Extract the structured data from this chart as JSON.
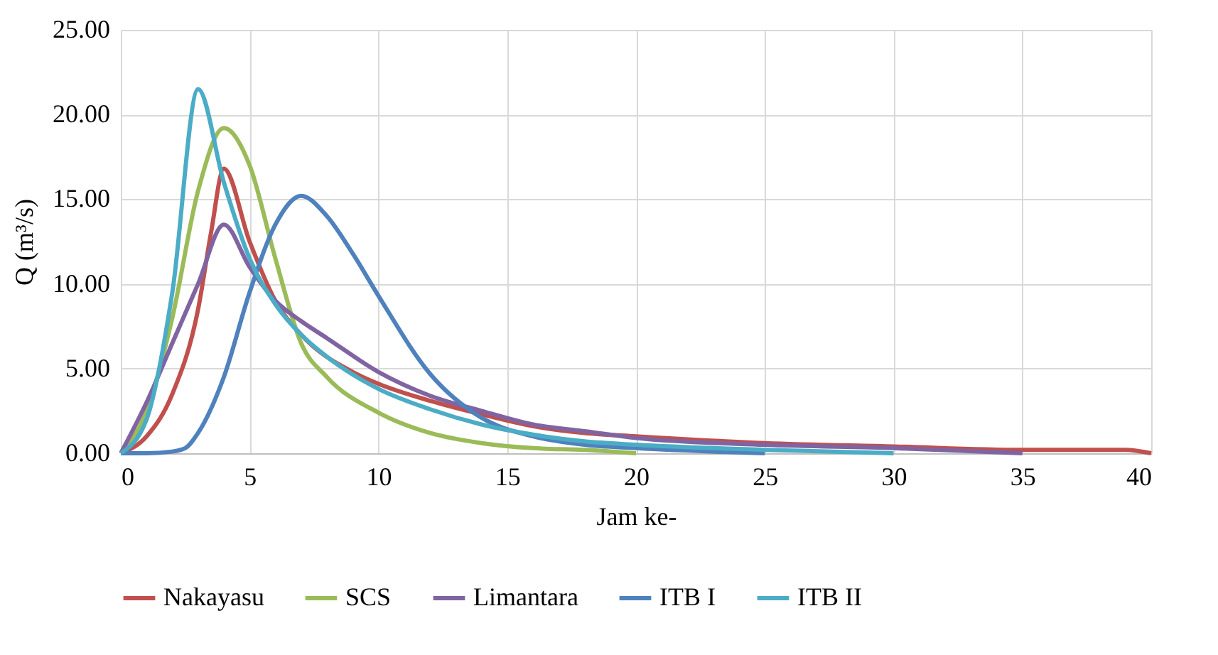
{
  "chart_data": {
    "type": "line",
    "xlabel": "Jam ke-",
    "ylabel": "Q (m³/s)",
    "xlim": [
      0,
      40
    ],
    "xticks": [
      0,
      5,
      10,
      15,
      20,
      25,
      30,
      35,
      40
    ],
    "ylim": [
      0,
      25
    ],
    "yticks": [
      {
        "value": 0,
        "label": "0.00"
      },
      {
        "value": 5,
        "label": "5.00"
      },
      {
        "value": 10,
        "label": "10.00"
      },
      {
        "value": 15,
        "label": "15.00"
      },
      {
        "value": 20,
        "label": "20.00"
      },
      {
        "value": 25,
        "label": "25.00"
      }
    ],
    "grid": true,
    "legend": "bottom",
    "line_style": "solid",
    "marker": "none",
    "series": [
      {
        "name": "Nakayasu",
        "color": "#c0504d",
        "x": [
          0,
          1,
          2,
          3,
          3.5,
          4,
          5,
          6,
          7,
          9,
          10,
          12,
          14,
          16,
          18,
          20,
          25,
          30,
          35,
          39,
          40
        ],
        "values": [
          0,
          1.0,
          3.5,
          8.5,
          13,
          16.8,
          12.5,
          9.0,
          7.0,
          4.8,
          4.1,
          3.1,
          2.3,
          1.6,
          1.2,
          1.0,
          0.6,
          0.4,
          0.2,
          0.2,
          0
        ]
      },
      {
        "name": "SCS",
        "color": "#9bbb59",
        "x": [
          0,
          1,
          2,
          3,
          4,
          5,
          6,
          7,
          8,
          10,
          12,
          14,
          16,
          18,
          20
        ],
        "values": [
          0,
          2.5,
          8.0,
          15.5,
          19.2,
          17.0,
          11.5,
          6.5,
          4.5,
          2.4,
          1.2,
          0.6,
          0.3,
          0.2,
          0
        ]
      },
      {
        "name": "Limantara",
        "color": "#8064a2",
        "x": [
          0,
          1,
          2,
          3,
          4,
          5,
          6,
          7,
          8,
          10,
          12,
          14,
          16,
          18,
          20,
          25,
          30,
          35
        ],
        "values": [
          0,
          3.0,
          6.5,
          10.0,
          13.5,
          11.0,
          9.0,
          7.8,
          6.8,
          4.8,
          3.4,
          2.5,
          1.7,
          1.3,
          0.9,
          0.5,
          0.3,
          0
        ]
      },
      {
        "name": "ITB I",
        "color": "#4f81bd",
        "x": [
          0,
          1,
          2,
          2.5,
          3,
          4,
          5,
          6,
          7,
          8,
          9,
          10,
          12,
          14,
          16,
          18,
          20,
          25
        ],
        "values": [
          0,
          0,
          0.1,
          0.3,
          1.2,
          4.5,
          9.5,
          13.5,
          15.2,
          14.0,
          11.8,
          9.3,
          4.7,
          2.1,
          1.0,
          0.5,
          0.3,
          0
        ]
      },
      {
        "name": "ITB II",
        "color": "#4bacc6",
        "x": [
          0,
          1,
          2,
          3,
          4,
          5,
          6,
          7,
          8,
          10,
          12,
          14,
          16,
          18,
          20,
          25,
          30
        ],
        "values": [
          0,
          2.0,
          9.5,
          21.5,
          16,
          11.5,
          8.8,
          7.0,
          5.7,
          3.8,
          2.6,
          1.7,
          1.1,
          0.7,
          0.5,
          0.2,
          0
        ]
      }
    ]
  }
}
